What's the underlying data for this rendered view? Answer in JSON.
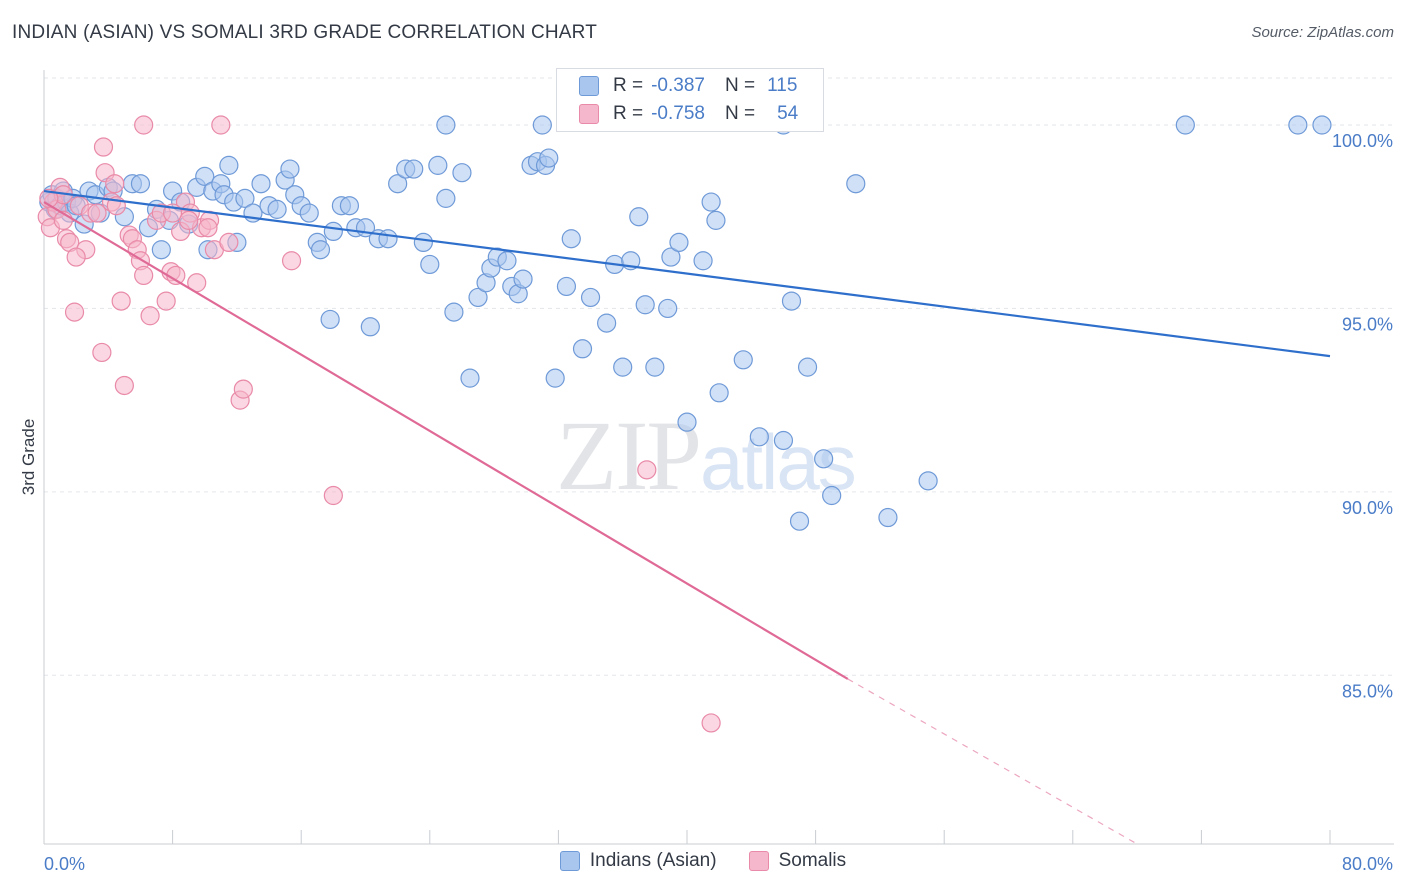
{
  "title": "INDIAN (ASIAN) VS SOMALI 3RD GRADE CORRELATION CHART",
  "source": "Source: ZipAtlas.com",
  "watermark": {
    "zip": "ZIP",
    "atlas": "atlas"
  },
  "legend": {
    "r_label": "R =",
    "n_label": "N =",
    "series": [
      {
        "r": "-0.387",
        "n": "115"
      },
      {
        "r": "-0.758",
        "n": "54"
      }
    ]
  },
  "colors": {
    "blue_fill": "#a9c6ee",
    "blue_stroke": "#6f9ad8",
    "blue_line": "#2f6fcc",
    "pink_fill": "#f5b7cb",
    "pink_stroke": "#e98aa8",
    "pink_line": "#e06a96",
    "grid": "#e3e6ea",
    "tick_text": "#4a7cc7"
  },
  "chart_data": {
    "type": "scatter",
    "title": "INDIAN (ASIAN) VS SOMALI 3RD GRADE CORRELATION CHART",
    "xlabel": "",
    "ylabel": "3rd Grade",
    "xlim": [
      0,
      80
    ],
    "ylim": [
      80.4,
      101.5
    ],
    "x_tick_labels": [
      "0.0%",
      "80.0%"
    ],
    "y_ticks": [
      85,
      90,
      95,
      100
    ],
    "y_tick_labels": [
      "85.0%",
      "90.0%",
      "95.0%",
      "100.0%"
    ],
    "series": [
      {
        "name": "Indians (Asian)",
        "r": -0.387,
        "n": 115,
        "trend": {
          "x": [
            0,
            80
          ],
          "y": [
            98.2,
            93.7
          ]
        },
        "points": [
          [
            0.3,
            97.9
          ],
          [
            0.5,
            98.1
          ],
          [
            0.7,
            97.7
          ],
          [
            0.8,
            98.0
          ],
          [
            1.0,
            97.8
          ],
          [
            1.2,
            98.2
          ],
          [
            1.4,
            97.9
          ],
          [
            1.6,
            97.6
          ],
          [
            1.8,
            98.0
          ],
          [
            2.0,
            97.8
          ],
          [
            2.5,
            97.3
          ],
          [
            2.8,
            98.2
          ],
          [
            3.2,
            98.1
          ],
          [
            3.5,
            97.6
          ],
          [
            4.0,
            98.3
          ],
          [
            4.3,
            98.2
          ],
          [
            5.0,
            97.5
          ],
          [
            5.5,
            98.4
          ],
          [
            6.0,
            98.4
          ],
          [
            6.5,
            97.2
          ],
          [
            7.0,
            97.7
          ],
          [
            7.3,
            96.6
          ],
          [
            7.8,
            97.4
          ],
          [
            8.0,
            98.2
          ],
          [
            8.5,
            97.9
          ],
          [
            9.0,
            97.3
          ],
          [
            9.5,
            98.3
          ],
          [
            10.0,
            98.6
          ],
          [
            10.2,
            96.6
          ],
          [
            10.5,
            98.2
          ],
          [
            11.0,
            98.4
          ],
          [
            11.2,
            98.1
          ],
          [
            11.5,
            98.9
          ],
          [
            11.8,
            97.9
          ],
          [
            12.0,
            96.8
          ],
          [
            12.5,
            98.0
          ],
          [
            13.0,
            97.6
          ],
          [
            13.5,
            98.4
          ],
          [
            14.0,
            97.8
          ],
          [
            14.5,
            97.7
          ],
          [
            15.0,
            98.5
          ],
          [
            15.3,
            98.8
          ],
          [
            15.6,
            98.1
          ],
          [
            16.0,
            97.8
          ],
          [
            16.5,
            97.6
          ],
          [
            17.0,
            96.8
          ],
          [
            17.2,
            96.6
          ],
          [
            17.8,
            94.7
          ],
          [
            18.0,
            97.1
          ],
          [
            18.5,
            97.8
          ],
          [
            19.0,
            97.8
          ],
          [
            19.4,
            97.2
          ],
          [
            20.0,
            97.2
          ],
          [
            20.3,
            94.5
          ],
          [
            20.8,
            96.9
          ],
          [
            21.4,
            96.9
          ],
          [
            22.0,
            98.4
          ],
          [
            22.5,
            98.8
          ],
          [
            23.0,
            98.8
          ],
          [
            23.6,
            96.8
          ],
          [
            24.0,
            96.2
          ],
          [
            24.5,
            98.9
          ],
          [
            25.0,
            98.0
          ],
          [
            25.5,
            94.9
          ],
          [
            26.0,
            98.7
          ],
          [
            26.5,
            93.1
          ],
          [
            27.0,
            95.3
          ],
          [
            27.5,
            95.7
          ],
          [
            27.8,
            96.1
          ],
          [
            28.2,
            96.4
          ],
          [
            28.8,
            96.3
          ],
          [
            29.1,
            95.6
          ],
          [
            29.5,
            95.4
          ],
          [
            29.8,
            95.8
          ],
          [
            30.3,
            98.9
          ],
          [
            30.7,
            99.0
          ],
          [
            31.2,
            98.9
          ],
          [
            31.8,
            93.1
          ],
          [
            32.5,
            95.6
          ],
          [
            32.8,
            96.9
          ],
          [
            33.5,
            93.9
          ],
          [
            34.0,
            95.3
          ],
          [
            35.0,
            94.6
          ],
          [
            35.5,
            96.2
          ],
          [
            36.0,
            93.4
          ],
          [
            36.5,
            96.3
          ],
          [
            37.0,
            97.5
          ],
          [
            37.4,
            95.1
          ],
          [
            38.0,
            93.4
          ],
          [
            38.8,
            95.0
          ],
          [
            39.0,
            96.4
          ],
          [
            39.5,
            96.8
          ],
          [
            40.0,
            91.9
          ],
          [
            41.0,
            96.3
          ],
          [
            41.5,
            97.9
          ],
          [
            41.8,
            97.4
          ],
          [
            42.0,
            92.7
          ],
          [
            43.5,
            93.6
          ],
          [
            44.5,
            91.5
          ],
          [
            46.0,
            91.4
          ],
          [
            46.5,
            95.2
          ],
          [
            47.5,
            93.4
          ],
          [
            48.5,
            90.9
          ],
          [
            49.0,
            89.9
          ],
          [
            50.5,
            98.4
          ],
          [
            52.5,
            89.3
          ],
          [
            55.0,
            90.3
          ],
          [
            71.0,
            100.0
          ],
          [
            78.0,
            100.0
          ],
          [
            79.5,
            100.0
          ],
          [
            47.0,
            89.2
          ],
          [
            25.0,
            100.0
          ],
          [
            31.0,
            100.0
          ],
          [
            46.0,
            100.0
          ],
          [
            31.4,
            99.1
          ]
        ]
      },
      {
        "name": "Somalis",
        "r": -0.758,
        "n": 54,
        "trend": {
          "x": [
            0,
            50
          ],
          "y": [
            97.9,
            84.9
          ]
        },
        "trend_extension": {
          "x": [
            50,
            68
          ],
          "y": [
            84.9,
            80.4
          ]
        },
        "points": [
          [
            0.2,
            97.5
          ],
          [
            0.4,
            97.2
          ],
          [
            0.6,
            97.9
          ],
          [
            0.8,
            97.7
          ],
          [
            1.0,
            98.3
          ],
          [
            1.2,
            97.4
          ],
          [
            1.4,
            96.9
          ],
          [
            1.6,
            96.8
          ],
          [
            1.9,
            94.9
          ],
          [
            2.2,
            97.8
          ],
          [
            2.6,
            96.6
          ],
          [
            2.9,
            97.6
          ],
          [
            3.3,
            97.6
          ],
          [
            3.6,
            93.8
          ],
          [
            3.8,
            98.7
          ],
          [
            4.2,
            97.9
          ],
          [
            4.5,
            97.8
          ],
          [
            4.8,
            95.2
          ],
          [
            5.0,
            92.9
          ],
          [
            5.3,
            97.0
          ],
          [
            5.5,
            96.9
          ],
          [
            5.8,
            96.6
          ],
          [
            6.0,
            96.3
          ],
          [
            6.2,
            95.9
          ],
          [
            6.6,
            94.8
          ],
          [
            7.0,
            97.4
          ],
          [
            7.3,
            97.6
          ],
          [
            7.6,
            95.2
          ],
          [
            7.9,
            96.0
          ],
          [
            8.2,
            95.9
          ],
          [
            8.5,
            97.1
          ],
          [
            8.8,
            97.9
          ],
          [
            9.1,
            97.6
          ],
          [
            9.5,
            95.7
          ],
          [
            9.8,
            97.2
          ],
          [
            10.3,
            97.4
          ],
          [
            10.6,
            96.6
          ],
          [
            11.0,
            100.0
          ],
          [
            11.5,
            96.8
          ],
          [
            12.2,
            92.5
          ],
          [
            12.4,
            92.8
          ],
          [
            15.4,
            96.3
          ],
          [
            18.0,
            89.9
          ],
          [
            37.5,
            90.6
          ],
          [
            41.5,
            83.7
          ],
          [
            6.2,
            100.0
          ],
          [
            3.7,
            99.4
          ],
          [
            1.2,
            98.1
          ],
          [
            0.3,
            98.0
          ],
          [
            2.0,
            96.4
          ],
          [
            8.0,
            97.6
          ],
          [
            4.4,
            98.4
          ],
          [
            9.0,
            97.4
          ],
          [
            10.2,
            97.2
          ]
        ]
      }
    ]
  }
}
